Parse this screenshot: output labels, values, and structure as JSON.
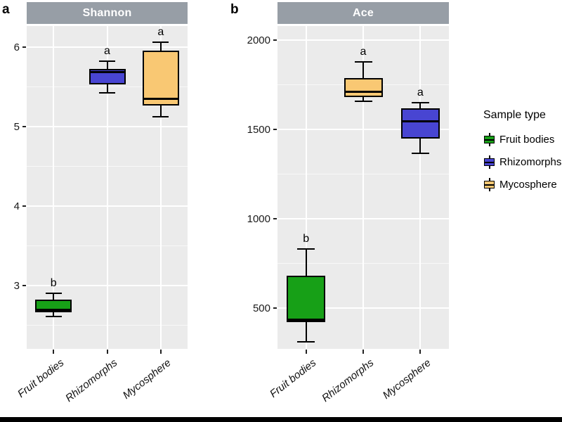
{
  "figure": {
    "panel_a_label": "a",
    "panel_b_label": "b",
    "colors": {
      "strip_bg": "#979EA6",
      "panel_bg": "#EBEBEB",
      "grid_major": "#FFFFFF",
      "grid_minor": "#F5F5F5",
      "box_border": "#000000",
      "fruit_bodies": "#17A017",
      "rhizomorphs": "#4845D2",
      "mycosphere": "#F9C873"
    }
  },
  "legend": {
    "title": "Sample type",
    "items": [
      {
        "label": "Fruit bodies",
        "color_key": "fruit_bodies"
      },
      {
        "label": "Rhizomorphs",
        "color_key": "rhizomorphs"
      },
      {
        "label": "Mycosphere",
        "color_key": "mycosphere"
      }
    ]
  },
  "chart_data": [
    {
      "type": "boxplot",
      "panel": "a",
      "title": "Shannon",
      "categories": [
        "Fruit bodies",
        "Rhizomorphs",
        "Mycosphere"
      ],
      "y_ticks": [
        3,
        4,
        5,
        6
      ],
      "ylim": [
        2.2,
        6.27
      ],
      "grid": true,
      "boxes": [
        {
          "category": "Fruit bodies",
          "color_key": "fruit_bodies",
          "min": 2.61,
          "q1": 2.66,
          "median": 2.69,
          "q3": 2.82,
          "max": 2.9,
          "sig_letter": "b"
        },
        {
          "category": "Rhizomorphs",
          "color_key": "rhizomorphs",
          "min": 5.43,
          "q1": 5.53,
          "median": 5.69,
          "q3": 5.73,
          "max": 5.83,
          "sig_letter": "a"
        },
        {
          "category": "Mycosphere",
          "color_key": "mycosphere",
          "min": 5.13,
          "q1": 5.27,
          "median": 5.35,
          "q3": 5.96,
          "max": 6.07,
          "sig_letter": "a"
        }
      ],
      "note_series_color_mapping": "Rhizomorphs box drawn in mycosphere orange and Mycosphere box in rhizomorph blue per x-position order: Fruit bodies=green, middle=orange, right=blue"
    },
    {
      "type": "boxplot",
      "panel": "b",
      "title": "Ace",
      "categories": [
        "Fruit bodies",
        "Rhizomorphs",
        "Mycosphere"
      ],
      "y_ticks": [
        500,
        1000,
        1500,
        2000
      ],
      "ylim": [
        270,
        2080
      ],
      "grid": true,
      "boxes": [
        {
          "category": "Fruit bodies",
          "color_key": "fruit_bodies",
          "min": 310,
          "q1": 420,
          "median": 432,
          "q3": 680,
          "max": 828,
          "sig_letter": "b"
        },
        {
          "category": "Rhizomorphs",
          "color_key": "mycosphere_fill_orange",
          "min": 1660,
          "q1": 1680,
          "median": 1710,
          "q3": 1790,
          "max": 1880,
          "sig_letter": "a"
        },
        {
          "category": "Mycosphere",
          "color_key": "rhizomorph_fill_blue",
          "min": 1365,
          "q1": 1450,
          "median": 1545,
          "q3": 1620,
          "max": 1652,
          "sig_letter": "a"
        }
      ]
    }
  ]
}
